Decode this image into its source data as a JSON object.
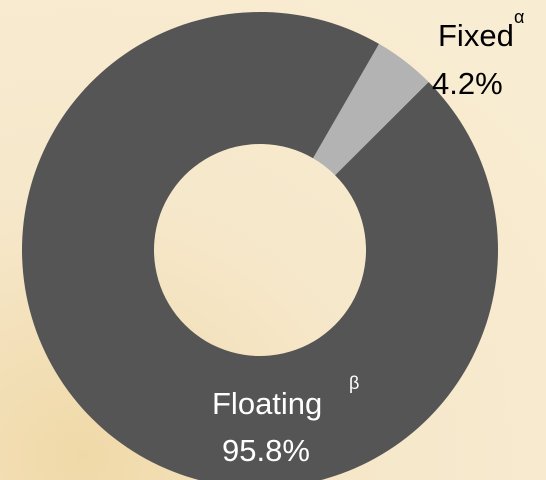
{
  "chart_data": {
    "type": "donut",
    "categories": [
      "Fixed",
      "Floating"
    ],
    "superscripts": [
      "α",
      "β"
    ],
    "values": [
      4.2,
      95.8
    ],
    "value_labels": [
      "4.2%",
      "95.8%"
    ],
    "colors": [
      "#b3b3b3",
      "#555555"
    ],
    "label_colors": [
      "#000000",
      "#ffffff"
    ]
  }
}
